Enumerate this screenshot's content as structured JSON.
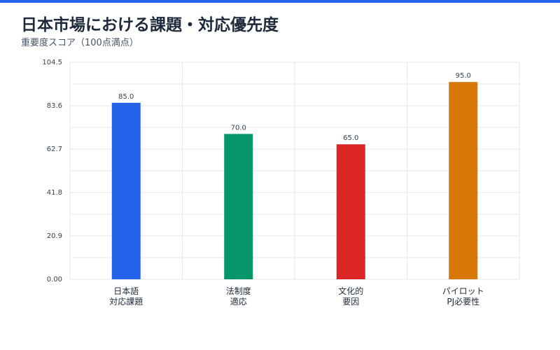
{
  "header": {
    "title": "日本市場における課題・対応優先度",
    "subtitle": "重要度スコア（100点満点）"
  },
  "colors": {
    "accent": "#2563eb",
    "grid": "#e5e7eb"
  },
  "chart_data": {
    "type": "bar",
    "title": "日本市場における課題・対応優先度",
    "subtitle": "重要度スコア（100点満点）",
    "xlabel": "",
    "ylabel": "",
    "ylim": [
      0,
      104.5
    ],
    "yticks": [
      "0.00",
      "20.9",
      "41.8",
      "62.7",
      "83.6",
      "104.5"
    ],
    "grid": true,
    "legend": "none",
    "categories": [
      [
        "日本語",
        "対応課題"
      ],
      [
        "法制度",
        "適応"
      ],
      [
        "文化的",
        "要因"
      ],
      [
        "パイロット",
        "PJ必要性"
      ]
    ],
    "values": [
      85.0,
      70.0,
      65.0,
      95.0
    ],
    "value_labels": [
      "85.0",
      "70.0",
      "65.0",
      "95.0"
    ],
    "bar_colors": [
      "#2563eb",
      "#059669",
      "#dc2626",
      "#d97706"
    ]
  }
}
